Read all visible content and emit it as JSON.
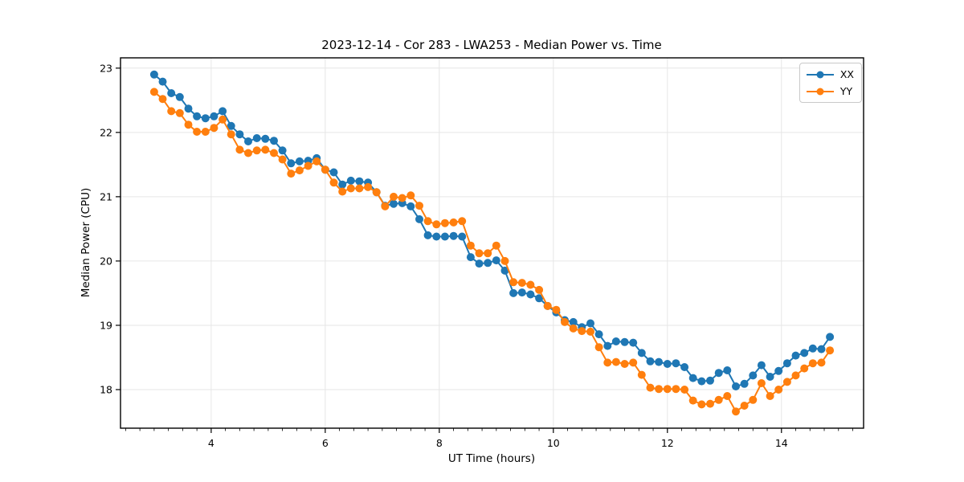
{
  "chart_data": {
    "type": "line",
    "title": "2023-12-14 - Cor 283 - LWA253 - Median Power vs. Time",
    "xlabel": "UT Time (hours)",
    "ylabel": "Median Power (CPU)",
    "xlim": [
      2.41,
      15.44
    ],
    "ylim": [
      17.4,
      23.16
    ],
    "xticks": [
      4,
      6,
      8,
      10,
      12,
      14
    ],
    "yticks": [
      18,
      19,
      20,
      21,
      22,
      23
    ],
    "x_minor_tick_step": 0.25,
    "grid": true,
    "grid_color": "#e6e6e6",
    "axis_color": "#000000",
    "background": "#ffffff",
    "legend_position": "upper right",
    "marker": "circle",
    "x": [
      3.0,
      3.15,
      3.3,
      3.45,
      3.6,
      3.75,
      3.9,
      4.05,
      4.2,
      4.35,
      4.5,
      4.65,
      4.8,
      4.95,
      5.1,
      5.25,
      5.4,
      5.55,
      5.7,
      5.85,
      6.0,
      6.15,
      6.3,
      6.45,
      6.6,
      6.75,
      6.9,
      7.05,
      7.2,
      7.35,
      7.5,
      7.65,
      7.8,
      7.95,
      8.1,
      8.25,
      8.4,
      8.55,
      8.7,
      8.85,
      9.0,
      9.15,
      9.3,
      9.45,
      9.6,
      9.75,
      9.9,
      10.05,
      10.2,
      10.35,
      10.5,
      10.65,
      10.8,
      10.95,
      11.1,
      11.25,
      11.4,
      11.55,
      11.7,
      11.85,
      12.0,
      12.15,
      12.3,
      12.45,
      12.6,
      12.75,
      12.9,
      13.05,
      13.2,
      13.35,
      13.5,
      13.65,
      13.8,
      13.95,
      14.1,
      14.25,
      14.4,
      14.55,
      14.7,
      14.85
    ],
    "series": [
      {
        "name": "XX",
        "color": "#1f77b4",
        "values": [
          22.9,
          22.79,
          22.61,
          22.55,
          22.37,
          22.25,
          22.22,
          22.25,
          22.33,
          22.1,
          21.97,
          21.86,
          21.91,
          21.9,
          21.87,
          21.72,
          21.52,
          21.55,
          21.56,
          21.6,
          21.42,
          21.38,
          21.19,
          21.25,
          21.24,
          21.22,
          21.07,
          20.86,
          20.89,
          20.9,
          20.85,
          20.65,
          20.4,
          20.38,
          20.38,
          20.39,
          20.38,
          20.06,
          19.96,
          19.97,
          20.01,
          19.85,
          19.5,
          19.51,
          19.48,
          19.42,
          19.3,
          19.2,
          19.08,
          19.05,
          18.97,
          19.03,
          18.86,
          18.68,
          18.75,
          18.74,
          18.73,
          18.57,
          18.44,
          18.43,
          18.4,
          18.41,
          18.35,
          18.18,
          18.13,
          18.14,
          18.26,
          18.3,
          18.05,
          18.09,
          18.22,
          18.38,
          18.2,
          18.29,
          18.41,
          18.53,
          18.57,
          18.64,
          18.63,
          18.82
        ]
      },
      {
        "name": "YY",
        "color": "#ff7f0e",
        "values": [
          22.63,
          22.52,
          22.33,
          22.3,
          22.12,
          22.01,
          22.01,
          22.07,
          22.2,
          21.97,
          21.73,
          21.68,
          21.72,
          21.73,
          21.68,
          21.58,
          21.36,
          21.41,
          21.48,
          21.55,
          21.42,
          21.22,
          21.08,
          21.13,
          21.13,
          21.15,
          21.07,
          20.85,
          21.0,
          20.98,
          21.02,
          20.86,
          20.62,
          20.57,
          20.59,
          20.6,
          20.62,
          20.24,
          20.12,
          20.12,
          20.24,
          20.0,
          19.67,
          19.66,
          19.63,
          19.55,
          19.3,
          19.24,
          19.05,
          18.95,
          18.91,
          18.9,
          18.66,
          18.42,
          18.43,
          18.4,
          18.42,
          18.23,
          18.03,
          18.01,
          18.01,
          18.01,
          18.0,
          17.83,
          17.77,
          17.78,
          17.84,
          17.9,
          17.66,
          17.75,
          17.84,
          18.1,
          17.9,
          18.0,
          18.12,
          18.22,
          18.33,
          18.41,
          18.42,
          18.61
        ]
      }
    ]
  }
}
